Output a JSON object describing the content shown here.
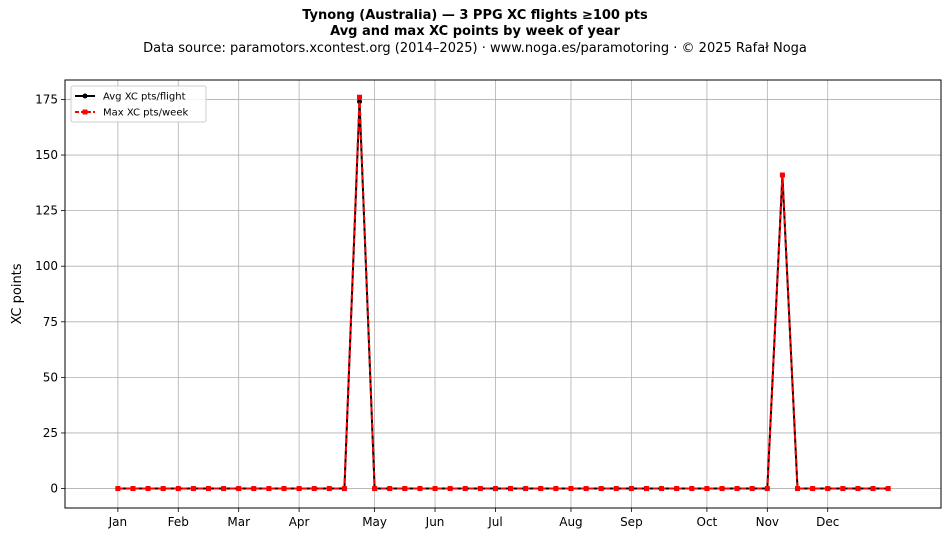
{
  "header": {
    "title": "Tynong (Australia)  —  3 PPG XC flights ≥100 pts",
    "subtitle": "Avg and max XC points by week of year",
    "source": "Data source: paramotors.xcontest.org (2014–2025)  ·  www.noga.es/paramotoring  ·  © 2025 Rafał Noga"
  },
  "chart_data": {
    "type": "line",
    "title": "Tynong (Australia)  —  3 PPG XC flights ≥100 pts",
    "subtitle": "Avg and max XC points by week of year",
    "xlabel": "",
    "ylabel": "XC points",
    "xlim": [
      -2.5,
      55.5
    ],
    "ylim": [
      -8.75,
      183.75
    ],
    "x": [
      1,
      2,
      3,
      4,
      5,
      6,
      7,
      8,
      9,
      10,
      11,
      12,
      13,
      14,
      15,
      16,
      17,
      18,
      19,
      20,
      21,
      22,
      23,
      24,
      25,
      26,
      27,
      28,
      29,
      30,
      31,
      32,
      33,
      34,
      35,
      36,
      37,
      38,
      39,
      40,
      41,
      42,
      43,
      44,
      45,
      46,
      47,
      48,
      49,
      50,
      51,
      52
    ],
    "x_ticks": [
      {
        "week": 1,
        "label": "Jan"
      },
      {
        "week": 5,
        "label": "Feb"
      },
      {
        "week": 9,
        "label": "Mar"
      },
      {
        "week": 13,
        "label": "Apr"
      },
      {
        "week": 18,
        "label": "May"
      },
      {
        "week": 22,
        "label": "Jun"
      },
      {
        "week": 26,
        "label": "Jul"
      },
      {
        "week": 31,
        "label": "Aug"
      },
      {
        "week": 35,
        "label": "Sep"
      },
      {
        "week": 40,
        "label": "Oct"
      },
      {
        "week": 44,
        "label": "Nov"
      },
      {
        "week": 48,
        "label": "Dec"
      }
    ],
    "y_ticks": [
      0,
      25,
      50,
      75,
      100,
      125,
      150,
      175
    ],
    "grid": true,
    "legend_position": "top-left",
    "series": [
      {
        "name": "Avg XC pts/flight",
        "color": "#000000",
        "line_style": "solid",
        "marker": "circle",
        "values": [
          0,
          0,
          0,
          0,
          0,
          0,
          0,
          0,
          0,
          0,
          0,
          0,
          0,
          0,
          0,
          0,
          174,
          0,
          0,
          0,
          0,
          0,
          0,
          0,
          0,
          0,
          0,
          0,
          0,
          0,
          0,
          0,
          0,
          0,
          0,
          0,
          0,
          0,
          0,
          0,
          0,
          0,
          0,
          0,
          141,
          0,
          0,
          0,
          0,
          0,
          0,
          0
        ]
      },
      {
        "name": "Max XC pts/week",
        "color": "#ff0000",
        "line_style": "dashed",
        "marker": "square",
        "values": [
          0,
          0,
          0,
          0,
          0,
          0,
          0,
          0,
          0,
          0,
          0,
          0,
          0,
          0,
          0,
          0,
          176,
          0,
          0,
          0,
          0,
          0,
          0,
          0,
          0,
          0,
          0,
          0,
          0,
          0,
          0,
          0,
          0,
          0,
          0,
          0,
          0,
          0,
          0,
          0,
          0,
          0,
          0,
          0,
          141,
          0,
          0,
          0,
          0,
          0,
          0,
          0
        ]
      }
    ]
  }
}
